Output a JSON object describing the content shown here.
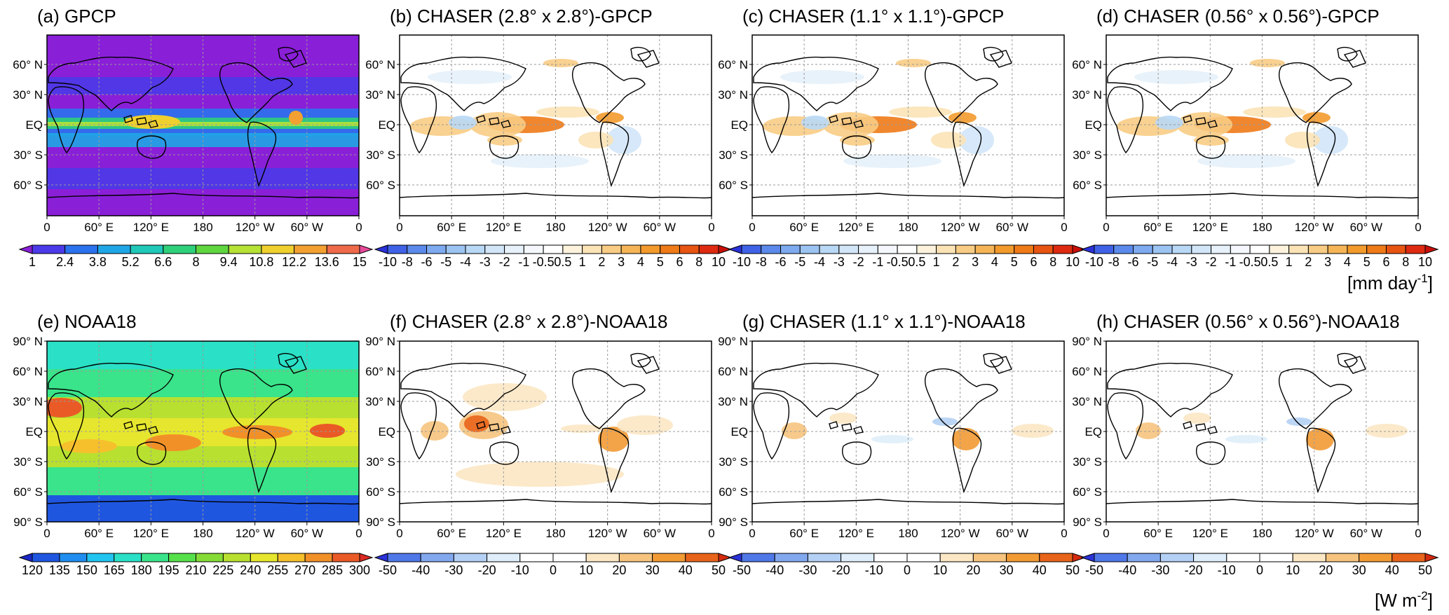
{
  "panels": [
    {
      "id": "a",
      "title": "(a) GPCP",
      "kind": "abs",
      "row": 0,
      "lat_labels": [
        "60° N",
        "30° N",
        "EQ",
        "30° S",
        "60° S"
      ]
    },
    {
      "id": "b",
      "title": "(b) CHASER (2.8° x 2.8°)-GPCP",
      "kind": "diff",
      "row": 0,
      "lat_labels": [
        "60° N",
        "30° N",
        "EQ",
        "30° S",
        "60° S"
      ]
    },
    {
      "id": "c",
      "title": "(c) CHASER (1.1° x 1.1°)-GPCP",
      "kind": "diff",
      "row": 0,
      "lat_labels": [
        "60° N",
        "30° N",
        "EQ",
        "30° S",
        "60° S"
      ]
    },
    {
      "id": "d",
      "title": "(d) CHASER (0.56° x 0.56°)-GPCP",
      "kind": "diff",
      "row": 0,
      "lat_labels": [
        "60° N",
        "30° N",
        "EQ",
        "30° S",
        "60° S"
      ]
    },
    {
      "id": "e",
      "title": "(e) NOAA18",
      "kind": "abs",
      "row": 1,
      "lat_labels": [
        "90° N",
        "60° N",
        "30° N",
        "EQ",
        "30° S",
        "60° S",
        "90° S"
      ]
    },
    {
      "id": "f",
      "title": "(f) CHASER (2.8° x 2.8°)-NOAA18",
      "kind": "diff",
      "row": 1,
      "lat_labels": [
        "90° N",
        "60° N",
        "30° N",
        "EQ",
        "30° S",
        "60° S",
        "90° S"
      ]
    },
    {
      "id": "g",
      "title": "(g) CHASER (1.1° x 1.1°)-NOAA18",
      "kind": "diff",
      "row": 1,
      "lat_labels": [
        "90° N",
        "60° N",
        "30° N",
        "EQ",
        "30° S",
        "60° S",
        "90° S"
      ]
    },
    {
      "id": "h",
      "title": "(h) CHASER (0.56° x 0.56°)-NOAA18",
      "kind": "diff",
      "row": 1,
      "lat_labels": [
        "90° N",
        "60° N",
        "30° N",
        "EQ",
        "30° S",
        "60° S",
        "90° S"
      ]
    }
  ],
  "lon_labels": [
    "0",
    "60° E",
    "120° E",
    "180",
    "120° W",
    "60° W",
    "0"
  ],
  "colorbars": {
    "gpcp_abs": {
      "labels": [
        "1",
        "2.4",
        "3.8",
        "5.2",
        "6.6",
        "8",
        "9.4",
        "10.8",
        "12.2",
        "13.6",
        "15"
      ],
      "colors": [
        "#8a1fd8",
        "#4a3ae8",
        "#2a72ee",
        "#1fa6e6",
        "#1fc8b8",
        "#2ed07a",
        "#5fd63e",
        "#b6e236",
        "#f0d02e",
        "#f2a032",
        "#ee6a4a",
        "#e84a9a"
      ]
    },
    "gpcp_diff": {
      "labels": [
        "-10",
        "-8",
        "-6",
        "-5",
        "-4",
        "-3",
        "-2",
        "-1",
        "-0.5",
        "0.5",
        "1",
        "2",
        "3",
        "4",
        "5",
        "6",
        "8",
        "10"
      ],
      "colors": [
        "#2a32d8",
        "#3f62e6",
        "#5b8aec",
        "#7eaaf0",
        "#9cc4f2",
        "#b8d8f6",
        "#d2e6f8",
        "#e6f1fa",
        "#f4f8fc",
        "#ffffff",
        "#fdf2dc",
        "#fbe3b6",
        "#f8cc84",
        "#f5b456",
        "#f39a2c",
        "#ee7a18",
        "#e85412",
        "#dd2a10",
        "#c81008"
      ]
    },
    "noaa_abs": {
      "labels": [
        "120",
        "135",
        "150",
        "165",
        "180",
        "195",
        "210",
        "225",
        "240",
        "255",
        "270",
        "285",
        "300"
      ],
      "colors": [
        "#1b28c8",
        "#1f56e0",
        "#1f8ef0",
        "#22c4f0",
        "#2ae0c6",
        "#3ae48a",
        "#56e04a",
        "#86dc36",
        "#b8e030",
        "#e6e62e",
        "#f6c02c",
        "#f29028",
        "#ea5a26",
        "#dc2a22"
      ]
    },
    "noaa_diff": {
      "labels": [
        "-50",
        "-40",
        "-30",
        "-20",
        "-10",
        "0",
        "10",
        "20",
        "30",
        "40",
        "50"
      ],
      "colors": [
        "#2a32d8",
        "#4f78e8",
        "#82a8ee",
        "#b4d0f4",
        "#dfeefa",
        "#ffffff",
        "#ffffff",
        "#fbe7c4",
        "#f6c47e",
        "#f29a34",
        "#e8641a",
        "#d42a0e"
      ]
    }
  },
  "units": {
    "top": "[mm day-1]",
    "bottom": "[W m-2]"
  },
  "unit_text": {
    "top_main": "[mm day",
    "top_sup": "-1",
    "top_close": "]",
    "bottom_main": "[W m",
    "bottom_sup": "-2",
    "bottom_close": "]"
  },
  "map_colors": {
    "gpcp_background": "#8a1fd8",
    "noaa_background": "#56e04a",
    "coastline": "#000000",
    "grid": "#9a9a9a"
  }
}
